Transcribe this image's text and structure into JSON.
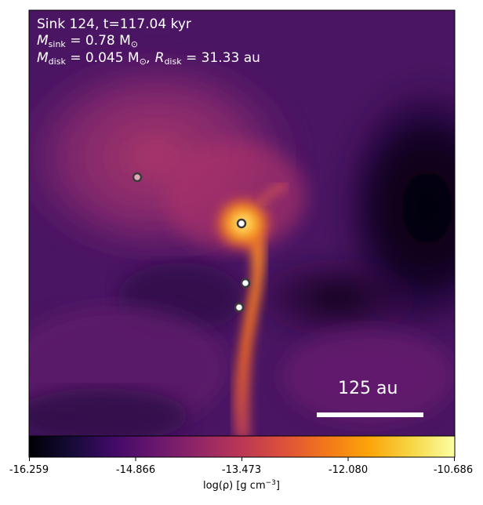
{
  "header": {
    "sink_label": "Sink 124, t=117.04 kyr",
    "m_sink_symbol": "M",
    "m_sink_sub": "sink",
    "m_sink_value": " = 0.78 M",
    "m_sink_sun": "⊙",
    "m_disk_symbol": "M",
    "m_disk_sub": "disk",
    "m_disk_value": " = 0.045 M",
    "m_disk_sun": "⊙",
    "r_disk_symbol": ", R",
    "r_disk_sub": "disk",
    "r_disk_value": " = 31.33 au"
  },
  "scale_bar": {
    "label": "125 au"
  },
  "colorbar": {
    "ticks": [
      "-16.259",
      "-14.866",
      "-13.473",
      "-12.080",
      "-10.686"
    ],
    "label_prefix": "log(ρ) [g cm",
    "label_exp": "−3",
    "label_suffix": "]",
    "colormap": "inferno"
  },
  "sinks": [
    {
      "name": "sink-a",
      "fill": "#e0a8b8"
    },
    {
      "name": "sink-b",
      "fill": "#ffffff"
    },
    {
      "name": "sink-c",
      "fill": "#ffffff"
    },
    {
      "name": "sink-d",
      "fill": "#ffffff"
    }
  ],
  "colors": {
    "background": "#5a1a6e",
    "stream": "#f07a2a",
    "core": "#ffd24a"
  }
}
